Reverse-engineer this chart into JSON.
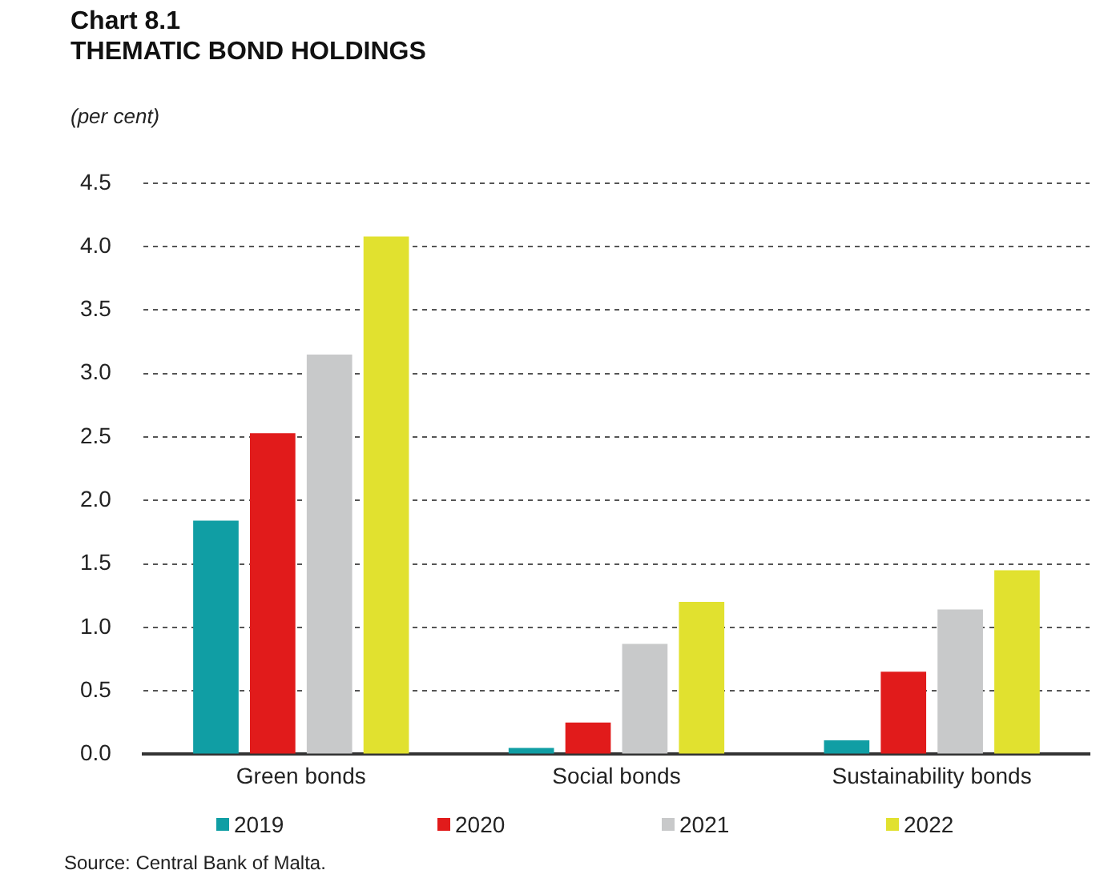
{
  "chart_data": {
    "type": "bar",
    "title": "Chart 8.1",
    "subtitle": "THEMATIC BOND HOLDINGS",
    "ylabel": "(per cent)",
    "categories": [
      "Green bonds",
      "Social bonds",
      "Sustainability bonds"
    ],
    "series": [
      {
        "name": "2019",
        "color": "#109ea4",
        "values": [
          1.84,
          0.05,
          0.11
        ]
      },
      {
        "name": "2020",
        "color": "#e11b1b",
        "values": [
          2.53,
          0.25,
          0.65
        ]
      },
      {
        "name": "2021",
        "color": "#c8c9ca",
        "values": [
          3.15,
          0.87,
          1.14
        ]
      },
      {
        "name": "2022",
        "color": "#e1e12f",
        "values": [
          4.08,
          1.2,
          1.45
        ]
      }
    ],
    "ylim": [
      0,
      4.5
    ],
    "yticks": [
      {
        "value": 0,
        "label": "0.0"
      },
      0.5,
      {
        "value": 1,
        "label": "1.0"
      },
      1.5,
      {
        "value": 2,
        "label": "2.0"
      },
      2.5,
      {
        "value": 3,
        "label": "3.0"
      },
      3.5,
      {
        "value": 4,
        "label": "4.0"
      },
      4.5
    ],
    "grid": "y",
    "legend": "bottom",
    "annotations": [
      "Source: Central Bank of Malta."
    ]
  }
}
